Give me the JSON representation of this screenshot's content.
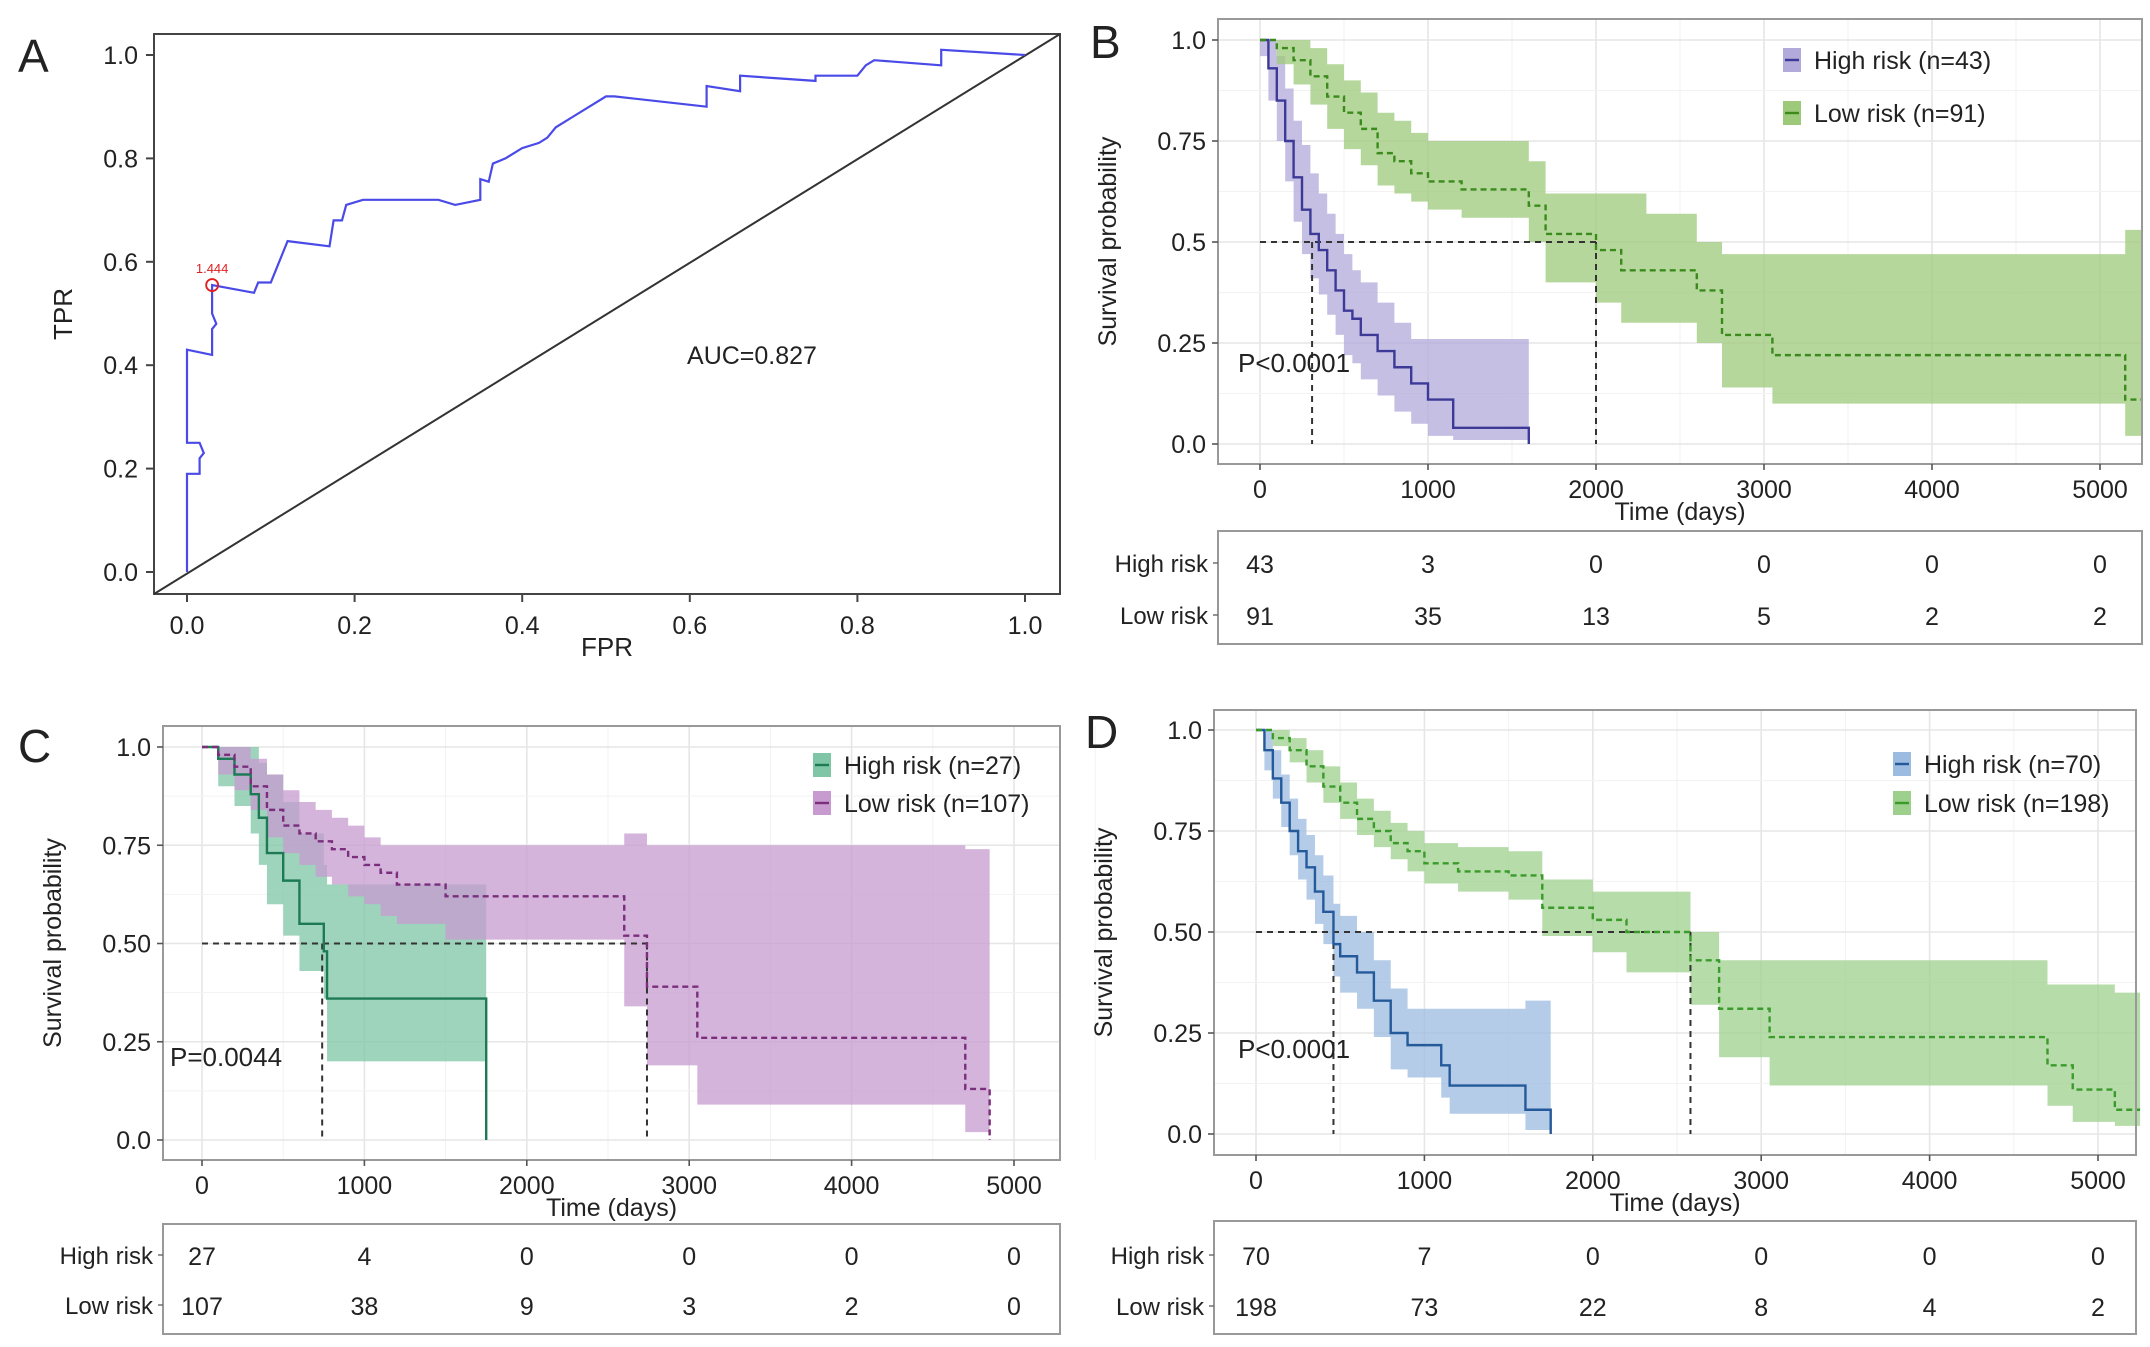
{
  "chart_data": [
    {
      "panel": "A",
      "type": "line",
      "subtype": "roc",
      "xlabel": "FPR",
      "ylabel": "TPR",
      "xlim": [
        0,
        1
      ],
      "ylim": [
        0,
        1
      ],
      "xticks": [
        "0.0",
        "0.2",
        "0.4",
        "0.6",
        "0.8",
        "1.0"
      ],
      "yticks": [
        "0.0",
        "0.2",
        "0.4",
        "0.6",
        "0.8",
        "1.0"
      ],
      "annotation": "AUC=0.827",
      "cutoff": {
        "label": "1.444",
        "fpr": 0.03,
        "tpr": 0.555
      },
      "roc": {
        "color": "#4a4ae8",
        "x": [
          0,
          0,
          0.015,
          0.015,
          0.02,
          0.015,
          0.0,
          0.0,
          0.03,
          0.03,
          0.035,
          0.03,
          0.03,
          0.08,
          0.085,
          0.1,
          0.11,
          0.12,
          0.17,
          0.175,
          0.185,
          0.19,
          0.21,
          0.25,
          0.3,
          0.32,
          0.35,
          0.35,
          0.36,
          0.365,
          0.38,
          0.4,
          0.42,
          0.43,
          0.44,
          0.46,
          0.5,
          0.51,
          0.62,
          0.62,
          0.66,
          0.66,
          0.75,
          0.75,
          0.8,
          0.81,
          0.82,
          0.9,
          0.9,
          1.0
        ],
        "y": [
          0,
          0.19,
          0.19,
          0.22,
          0.23,
          0.25,
          0.25,
          0.43,
          0.42,
          0.47,
          0.48,
          0.5,
          0.555,
          0.54,
          0.56,
          0.56,
          0.6,
          0.64,
          0.63,
          0.68,
          0.68,
          0.71,
          0.72,
          0.72,
          0.72,
          0.71,
          0.72,
          0.76,
          0.755,
          0.79,
          0.8,
          0.82,
          0.83,
          0.84,
          0.86,
          0.88,
          0.92,
          0.92,
          0.9,
          0.94,
          0.93,
          0.96,
          0.95,
          0.96,
          0.96,
          0.98,
          0.99,
          0.98,
          1.01,
          1.0
        ]
      },
      "diagonal": "y=x"
    },
    {
      "panel": "B",
      "type": "line",
      "subtype": "kaplan-meier",
      "xlabel": "Time (days)",
      "ylabel": "Survival probability",
      "xlim": [
        -200,
        5250
      ],
      "ylim": [
        0,
        1
      ],
      "xticks": [
        0,
        1000,
        2000,
        3000,
        4000,
        5000
      ],
      "ytick_labels": [
        "0.0",
        "0.25",
        "0.5",
        "0.75",
        "1.0"
      ],
      "pvalue": "P<0.0001",
      "median_lines": [
        310,
        2000
      ],
      "legend": [
        "High risk (n=43)",
        "Low risk (n=91)"
      ],
      "series": [
        {
          "name": "High risk (n=43)",
          "line": "#3c3a96",
          "fill": "#b2aadb",
          "dashed": false,
          "t": [
            0,
            50,
            100,
            150,
            200,
            250,
            300,
            350,
            400,
            450,
            500,
            550,
            600,
            700,
            800,
            900,
            1000,
            1150,
            1600
          ],
          "s": [
            1,
            0.93,
            0.85,
            0.75,
            0.66,
            0.58,
            0.52,
            0.48,
            0.43,
            0.38,
            0.33,
            0.31,
            0.27,
            0.23,
            0.19,
            0.15,
            0.11,
            0.04,
            0.0
          ],
          "lo": [
            0.96,
            0.85,
            0.75,
            0.65,
            0.55,
            0.47,
            0.41,
            0.37,
            0.32,
            0.27,
            0.22,
            0.2,
            0.16,
            0.12,
            0.08,
            0.05,
            0.02,
            0.01,
            0.01
          ],
          "hi": [
            1,
            1,
            0.96,
            0.88,
            0.8,
            0.74,
            0.67,
            0.62,
            0.57,
            0.52,
            0.47,
            0.43,
            0.4,
            0.35,
            0.3,
            0.26,
            0.26,
            0.26,
            0.26
          ]
        },
        {
          "name": "Low risk (n=91)",
          "line": "#3a8a1c",
          "fill": "#9dc97b",
          "dashed": true,
          "t": [
            0,
            100,
            200,
            300,
            400,
            500,
            600,
            700,
            800,
            900,
            1000,
            1200,
            1600,
            1700,
            2000,
            2150,
            2300,
            2600,
            2750,
            3050,
            5150,
            5250
          ],
          "s": [
            1,
            0.98,
            0.95,
            0.91,
            0.86,
            0.82,
            0.78,
            0.72,
            0.7,
            0.67,
            0.65,
            0.63,
            0.59,
            0.52,
            0.48,
            0.43,
            0.43,
            0.38,
            0.27,
            0.22,
            0.11,
            0.11
          ],
          "lo": [
            1,
            0.94,
            0.89,
            0.84,
            0.78,
            0.73,
            0.69,
            0.64,
            0.62,
            0.6,
            0.58,
            0.56,
            0.5,
            0.4,
            0.35,
            0.3,
            0.3,
            0.25,
            0.14,
            0.1,
            0.02,
            0.02
          ],
          "hi": [
            1,
            1,
            1,
            0.98,
            0.94,
            0.9,
            0.87,
            0.82,
            0.8,
            0.77,
            0.75,
            0.75,
            0.7,
            0.62,
            0.62,
            0.62,
            0.57,
            0.5,
            0.47,
            0.47,
            0.53,
            0.53
          ]
        }
      ],
      "risk_table": {
        "rows": [
          "High risk",
          "Low risk"
        ],
        "values": [
          [
            43,
            3,
            0,
            0,
            0,
            0
          ],
          [
            91,
            35,
            13,
            5,
            2,
            2
          ]
        ]
      }
    },
    {
      "panel": "C",
      "type": "line",
      "subtype": "kaplan-meier",
      "xlabel": "Time (days)",
      "ylabel": "Survival probability",
      "xlim": [
        -200,
        5250
      ],
      "ylim": [
        0,
        1
      ],
      "xticks": [
        0,
        1000,
        2000,
        3000,
        4000,
        5000
      ],
      "ytick_labels": [
        "0.0",
        "0.25",
        "0.50",
        "0.75",
        "1.0"
      ],
      "pvalue": "P=0.0044",
      "median_lines": [
        740,
        2740
      ],
      "legend": [
        "High risk (n=27)",
        "Low risk (n=107)"
      ],
      "series": [
        {
          "name": "High risk (n=27)",
          "line": "#1e7a55",
          "fill": "#7ec6a6",
          "dashed": false,
          "t": [
            0,
            100,
            200,
            300,
            350,
            400,
            500,
            600,
            750,
            770,
            1750
          ],
          "s": [
            1,
            0.97,
            0.93,
            0.88,
            0.82,
            0.73,
            0.66,
            0.55,
            0.48,
            0.36,
            0.0
          ],
          "lo": [
            1,
            0.9,
            0.85,
            0.78,
            0.7,
            0.6,
            0.52,
            0.43,
            0.36,
            0.2,
            0.2
          ],
          "hi": [
            1,
            1,
            1,
            1,
            0.96,
            0.93,
            0.86,
            0.78,
            0.7,
            0.65,
            0.65
          ]
        },
        {
          "name": "Low risk (n=107)",
          "line": "#7a2e7c",
          "fill": "#c79bd0",
          "dashed": true,
          "t": [
            0,
            100,
            200,
            300,
            400,
            500,
            600,
            700,
            800,
            900,
            1000,
            1100,
            1200,
            1500,
            2600,
            2740,
            3050,
            4700,
            4850
          ],
          "s": [
            1,
            0.98,
            0.95,
            0.9,
            0.84,
            0.8,
            0.78,
            0.76,
            0.74,
            0.72,
            0.7,
            0.68,
            0.65,
            0.62,
            0.52,
            0.39,
            0.26,
            0.13,
            0.0
          ],
          "lo": [
            1,
            0.93,
            0.89,
            0.84,
            0.77,
            0.73,
            0.7,
            0.67,
            0.65,
            0.62,
            0.6,
            0.57,
            0.55,
            0.51,
            0.34,
            0.19,
            0.09,
            0.02,
            0.02
          ],
          "hi": [
            1,
            1,
            1,
            0.97,
            0.93,
            0.89,
            0.86,
            0.84,
            0.82,
            0.8,
            0.77,
            0.75,
            0.75,
            0.75,
            0.78,
            0.75,
            0.75,
            0.74,
            0.74
          ]
        }
      ],
      "risk_table": {
        "rows": [
          "High risk",
          "Low risk"
        ],
        "values": [
          [
            27,
            4,
            0,
            0,
            0,
            0
          ],
          [
            107,
            38,
            9,
            3,
            2,
            0
          ]
        ]
      }
    },
    {
      "panel": "D",
      "type": "line",
      "subtype": "kaplan-meier",
      "xlabel": "Time (days)",
      "ylabel": "Survival probability",
      "xlim": [
        -200,
        5250
      ],
      "ylim": [
        0,
        1
      ],
      "xticks": [
        0,
        1000,
        2000,
        3000,
        4000,
        5000
      ],
      "ytick_labels": [
        "0.0",
        "0.25",
        "0.50",
        "0.75",
        "1.0"
      ],
      "pvalue": "P<0.0001",
      "median_lines": [
        460,
        2580
      ],
      "legend": [
        "High risk (n=70)",
        "Low risk (n=198)"
      ],
      "series": [
        {
          "name": "High risk (n=70)",
          "line": "#24599a",
          "fill": "#9bbbe0",
          "dashed": false,
          "t": [
            0,
            50,
            100,
            150,
            200,
            250,
            300,
            350,
            400,
            460,
            500,
            600,
            700,
            800,
            900,
            1100,
            1150,
            1600,
            1750
          ],
          "s": [
            1,
            0.95,
            0.88,
            0.82,
            0.75,
            0.7,
            0.66,
            0.6,
            0.55,
            0.47,
            0.44,
            0.4,
            0.33,
            0.25,
            0.22,
            0.17,
            0.12,
            0.06,
            0.0
          ],
          "lo": [
            1,
            0.9,
            0.83,
            0.76,
            0.69,
            0.63,
            0.58,
            0.52,
            0.47,
            0.39,
            0.35,
            0.31,
            0.24,
            0.16,
            0.14,
            0.09,
            0.05,
            0.01,
            0.01
          ],
          "hi": [
            1,
            1,
            0.95,
            0.89,
            0.83,
            0.78,
            0.74,
            0.69,
            0.64,
            0.57,
            0.54,
            0.5,
            0.43,
            0.36,
            0.31,
            0.31,
            0.31,
            0.33,
            0.33
          ]
        },
        {
          "name": "Low risk (n=198)",
          "line": "#3a9a2a",
          "fill": "#9dd08d",
          "dashed": true,
          "t": [
            0,
            100,
            200,
            300,
            400,
            500,
            600,
            700,
            800,
            900,
            1000,
            1200,
            1500,
            1700,
            2000,
            2200,
            2580,
            2750,
            3050,
            4700,
            4850,
            5100,
            5250
          ],
          "s": [
            1,
            0.98,
            0.95,
            0.91,
            0.86,
            0.82,
            0.78,
            0.75,
            0.72,
            0.7,
            0.67,
            0.65,
            0.64,
            0.56,
            0.53,
            0.5,
            0.43,
            0.31,
            0.24,
            0.17,
            0.11,
            0.06,
            0.06
          ],
          "lo": [
            1,
            0.96,
            0.92,
            0.87,
            0.82,
            0.78,
            0.74,
            0.71,
            0.68,
            0.65,
            0.62,
            0.6,
            0.58,
            0.49,
            0.45,
            0.4,
            0.32,
            0.19,
            0.12,
            0.07,
            0.03,
            0.02,
            0.02
          ],
          "hi": [
            1,
            1,
            0.98,
            0.95,
            0.91,
            0.87,
            0.83,
            0.8,
            0.77,
            0.75,
            0.72,
            0.71,
            0.7,
            0.63,
            0.6,
            0.6,
            0.5,
            0.43,
            0.43,
            0.37,
            0.37,
            0.35,
            0.35
          ]
        }
      ],
      "risk_table": {
        "rows": [
          "High risk",
          "Low risk"
        ],
        "values": [
          [
            70,
            7,
            0,
            0,
            0,
            0
          ],
          [
            198,
            73,
            22,
            8,
            4,
            2
          ]
        ]
      }
    }
  ]
}
